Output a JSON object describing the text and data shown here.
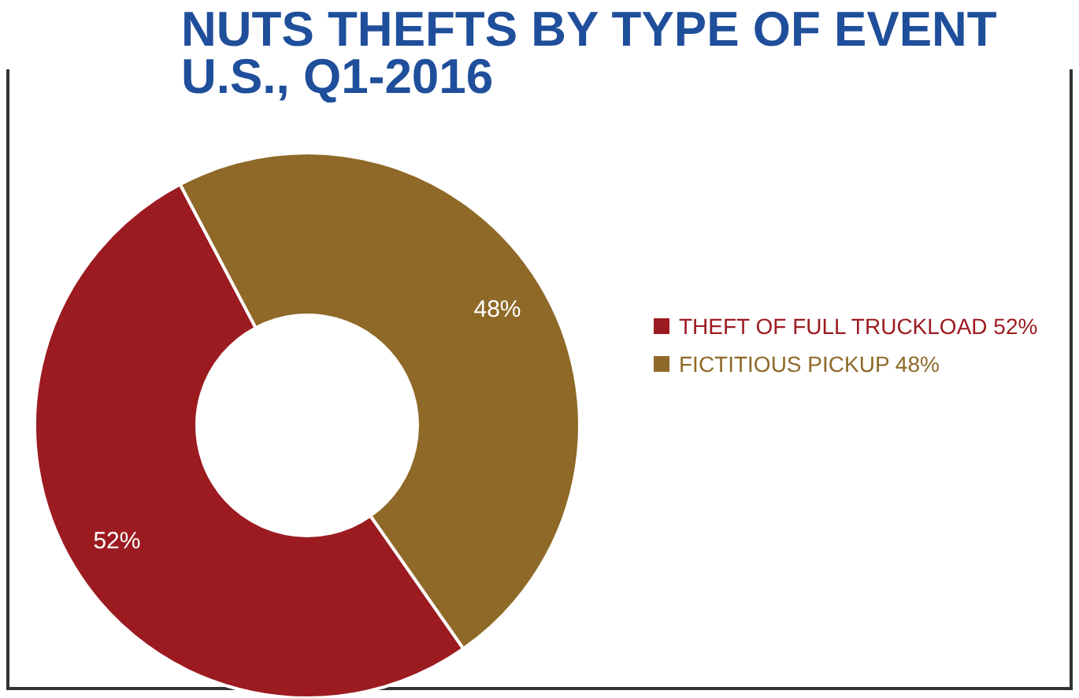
{
  "chart_data": {
    "type": "donut",
    "title": "NUTS THEFTS BY TYPE OF EVENT",
    "subtitle": "U.S., Q1-2016",
    "categories": [
      "THEFT OF FULL TRUCKLOAD",
      "FICTITIOUS PICKUP"
    ],
    "values": [
      52,
      48
    ],
    "colors": [
      "#9c1b21",
      "#8f6928"
    ],
    "value_labels": [
      "52%",
      "48%"
    ],
    "legend": "right"
  }
}
